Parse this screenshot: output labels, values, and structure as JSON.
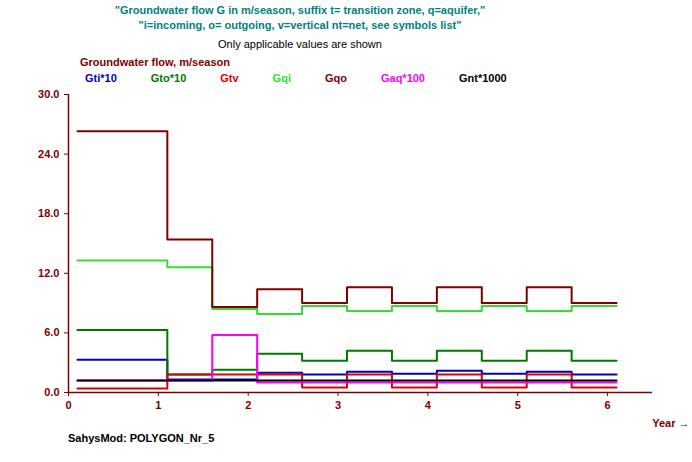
{
  "chart_data": {
    "type": "step",
    "title": [
      "\"Groundwater flow G in m/season, suffix t= transition zone, q=aquifer,\"",
      "\"i=incoming, o= outgoing, v=vertical nt=net, see symbols list\""
    ],
    "subtitle": "Only applicable values are shown",
    "y_label": "Groundwater flow, m/season",
    "x_label": "Year",
    "caption": "SahysMod: POLYGON_Nr_5",
    "bins": [
      0.1,
      1.1,
      1.6,
      2.1,
      2.6,
      3.1,
      3.6,
      4.1,
      4.6,
      5.1,
      5.6,
      6.1
    ],
    "series": [
      {
        "name": "Gti*10",
        "color": "#0000c0",
        "values": [
          3.3,
          1.3,
          1.3,
          2.0,
          1.8,
          2.1,
          1.9,
          2.2,
          1.9,
          2.1,
          1.8
        ]
      },
      {
        "name": "Gto*10",
        "color": "#007800",
        "values": [
          6.3,
          1.8,
          2.3,
          3.9,
          3.2,
          4.2,
          3.2,
          4.2,
          3.2,
          4.2,
          3.2
        ]
      },
      {
        "name": "Gtv",
        "color": "#e00000",
        "values": [
          0.4,
          1.8,
          1.8,
          1.8,
          0.5,
          1.8,
          0.5,
          1.8,
          0.5,
          1.8,
          0.5
        ]
      },
      {
        "name": "Gqi",
        "color": "#33dd33",
        "values": [
          13.3,
          12.6,
          8.4,
          7.9,
          8.7,
          8.2,
          8.7,
          8.2,
          8.7,
          8.2,
          8.7
        ]
      },
      {
        "name": "Gqo",
        "color": "#800000",
        "values": [
          26.3,
          15.4,
          8.6,
          10.4,
          9.0,
          10.6,
          9.0,
          10.6,
          9.0,
          10.6,
          9.0
        ]
      },
      {
        "name": "Gaq*100",
        "color": "#ff00ff",
        "values": [
          1.2,
          1.2,
          5.8,
          1.0,
          1.0,
          1.0,
          1.0,
          1.0,
          1.0,
          1.0,
          1.0
        ]
      },
      {
        "name": "Gnt*1000",
        "color": "#000000",
        "values": [
          1.2,
          1.2,
          1.2,
          1.2,
          1.2,
          1.2,
          1.2,
          1.2,
          1.2,
          1.2,
          1.2
        ]
      }
    ],
    "xlim": [
      0,
      6.5
    ],
    "xticks": [
      0,
      1,
      2,
      3,
      4,
      5,
      6
    ],
    "ylim": [
      0,
      30
    ],
    "yticks": [
      {
        "value": 0,
        "label": "0.0"
      },
      {
        "value": 6,
        "label": "6.0"
      },
      {
        "value": 12,
        "label": "12.0"
      },
      {
        "value": 18,
        "label": "18.0"
      },
      {
        "value": 24,
        "label": "24.0"
      },
      {
        "value": 30,
        "label": "30.0"
      }
    ],
    "grid": false,
    "legend": "top"
  }
}
